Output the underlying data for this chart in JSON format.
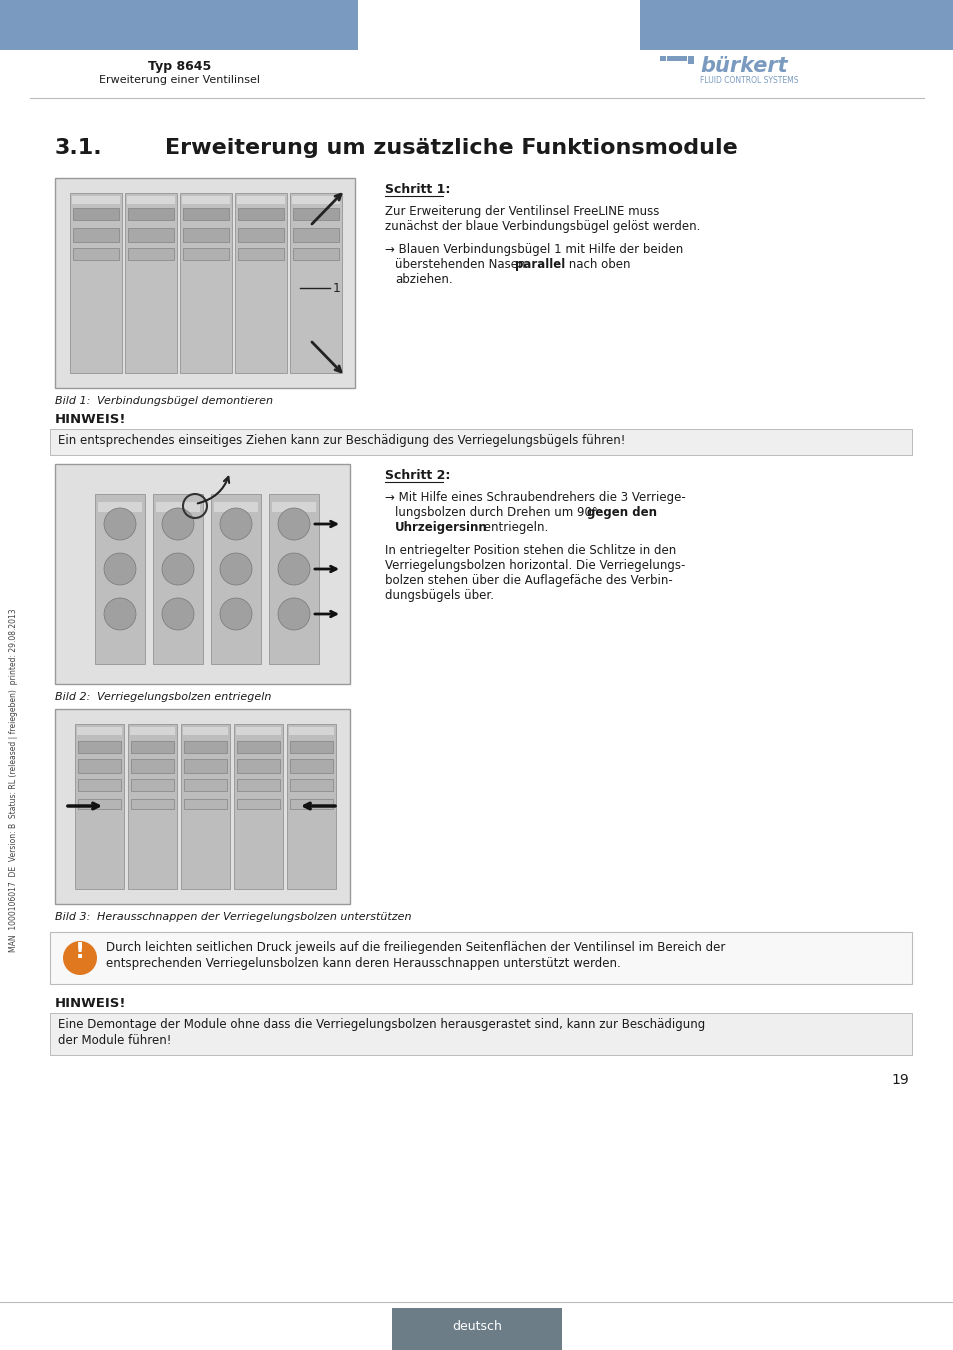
{
  "page_bg": "#ffffff",
  "header_bar_color": "#7a9bbf",
  "header_text_typ": "Typ 8645",
  "header_text_sub": "Erweiterung einer Ventilinsel",
  "burkert_color": "#7a9bbf",
  "section_title_num": "3.1.",
  "section_title_text": "Erweiterung um zusätzliche Funktionsmodule",
  "schritt1_title": "Schritt 1:",
  "schritt1_text1": "Zur Erweiterung der Ventilinsel FreeLINE muss",
  "schritt1_text2": "zunächst der blaue Verbindungsbügel gelöst werden.",
  "schritt1_bullet1": "→ Blauen Verbindungsbügel 1 mit Hilfe der beiden",
  "schritt1_bullet2a": "   überstehenden Nasen ",
  "schritt1_bullet2b": "parallel",
  "schritt1_bullet2c": " nach oben",
  "schritt1_bullet3": "   abziehen.",
  "bild1_label": "Bild 1:",
  "bild1_caption": "Verbindungsbügel demontieren",
  "hinweis1_title": "HINWEIS!",
  "hinweis1_text": "Ein entsprechendes einseitiges Ziehen kann zur Beschädigung des Verriegelungsbügels führen!",
  "schritt2_title": "Schritt 2:",
  "schritt2_bullet1": "→ Mit Hilfe eines Schraubendrehers die 3 Verriege-",
  "schritt2_bullet2a": "   lungsbolzen durch Drehen um 90° ",
  "schritt2_bullet2b": "gegen den",
  "schritt2_bullet3a": "   ",
  "schritt2_bullet3b": "Uhrzeigersinn",
  "schritt2_bullet3c": " entriegeln.",
  "schritt2_text1": "In entriegelter Position stehen die Schlitze in den",
  "schritt2_text2": "Verriegelungsbolzen horizontal. Die Verriegelungs-",
  "schritt2_text3": "bolzen stehen über die Auflagefäche des Verbin-",
  "schritt2_text4": "dungsbügels über.",
  "bild2_label": "Bild 2:",
  "bild2_caption": "Verriegelungsbolzen entriegeln",
  "bild3_label": "Bild 3:",
  "bild3_caption": "Herausschnappen der Verriegelungsbolzen unterstützen",
  "warning_text1": "Durch leichten seitlichen Druck jeweils auf die freiliegenden Seitenflächen der Ventilinsel im Bereich der",
  "warning_text2": "entsprechenden Verriegelunsbolzen kann deren Herausschnappen unterstützt werden.",
  "hinweis2_title": "HINWEIS!",
  "hinweis2_text1": "Eine Demontage der Module ohne dass die Verriegelungsbolzen herausgerastet sind, kann zur Beschädigung",
  "hinweis2_text2": "der Module führen!",
  "page_num": "19",
  "footer_text": "deutsch",
  "footer_bg": "#6c7d87",
  "sidebar_text": "MAN  1000106017  DE  Version: B  Status: RL (released | freiegeben)  printed: 29.08.2013",
  "sep_color": "#bbbbbb",
  "hinweis_bg": "#efefef",
  "warn_icon_color": "#e07820",
  "text_dark": "#1a1a1a",
  "img_bg": "#e0e0e0",
  "img_border": "#999999"
}
